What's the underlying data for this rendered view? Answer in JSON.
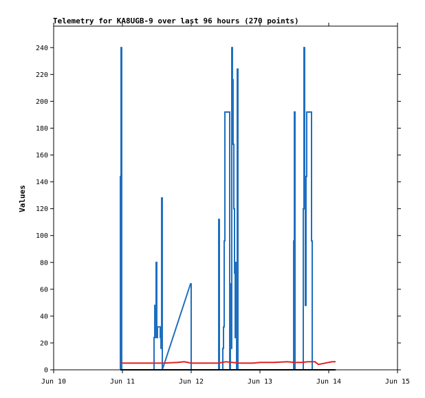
{
  "chart_data": {
    "type": "line",
    "title": "Telemetry for KA8UGB-9 over last 96 hours (270 points)",
    "xlabel": "",
    "ylabel": "Values",
    "x_ticks": [
      "Jun 10",
      "Jun 11",
      "Jun 12",
      "Jun 13",
      "Jun 14",
      "Jun 15"
    ],
    "x_range": [
      10,
      15
    ],
    "ylim": [
      0,
      256
    ],
    "y_ticks": [
      0,
      20,
      40,
      60,
      80,
      100,
      120,
      140,
      160,
      180,
      200,
      220,
      240
    ],
    "grid": false,
    "legend": "none",
    "series": [
      {
        "color": "#1f6fbf",
        "style": "step",
        "points": [
          [
            10.97,
            0
          ],
          [
            10.97,
            144
          ],
          [
            10.98,
            144
          ],
          [
            10.98,
            240
          ],
          [
            10.99,
            240
          ],
          [
            10.99,
            0
          ],
          [
            11.46,
            0
          ],
          [
            11.46,
            24
          ],
          [
            11.47,
            24
          ],
          [
            11.47,
            48
          ],
          [
            11.48,
            48
          ],
          [
            11.48,
            24
          ],
          [
            11.49,
            24
          ],
          [
            11.49,
            80
          ],
          [
            11.5,
            80
          ],
          [
            11.5,
            24
          ],
          [
            11.51,
            24
          ],
          [
            11.51,
            32
          ],
          [
            11.55,
            32
          ],
          [
            11.55,
            24
          ],
          [
            11.56,
            24
          ],
          [
            11.56,
            16
          ],
          [
            11.57,
            16
          ],
          [
            11.57,
            128
          ],
          [
            11.58,
            128
          ],
          [
            11.58,
            0
          ],
          [
            11.99,
            64
          ],
          [
            12.0,
            64
          ],
          [
            12.0,
            0
          ],
          [
            12.4,
            0
          ],
          [
            12.4,
            112
          ],
          [
            12.41,
            112
          ],
          [
            12.41,
            0
          ],
          [
            12.46,
            0
          ],
          [
            12.46,
            16
          ],
          [
            12.47,
            16
          ],
          [
            12.47,
            32
          ],
          [
            12.48,
            32
          ],
          [
            12.48,
            96
          ],
          [
            12.49,
            96
          ],
          [
            12.49,
            192
          ],
          [
            12.56,
            192
          ],
          [
            12.56,
            0
          ],
          [
            12.57,
            0
          ],
          [
            12.57,
            64
          ],
          [
            12.58,
            64
          ],
          [
            12.58,
            16
          ],
          [
            12.59,
            16
          ],
          [
            12.59,
            240
          ],
          [
            12.6,
            240
          ],
          [
            12.6,
            216
          ],
          [
            12.61,
            216
          ],
          [
            12.61,
            168
          ],
          [
            12.62,
            168
          ],
          [
            12.62,
            120
          ],
          [
            12.63,
            120
          ],
          [
            12.63,
            72
          ],
          [
            12.64,
            72
          ],
          [
            12.64,
            24
          ],
          [
            12.65,
            24
          ],
          [
            12.65,
            80
          ],
          [
            12.66,
            80
          ],
          [
            12.66,
            0
          ],
          [
            12.67,
            0
          ],
          [
            12.67,
            224
          ],
          [
            12.68,
            224
          ],
          [
            12.68,
            0
          ],
          [
            13.49,
            0
          ],
          [
            13.49,
            96
          ],
          [
            13.5,
            96
          ],
          [
            13.5,
            192
          ],
          [
            13.51,
            192
          ],
          [
            13.51,
            0
          ],
          [
            13.63,
            0
          ],
          [
            13.63,
            120
          ],
          [
            13.64,
            120
          ],
          [
            13.64,
            240
          ],
          [
            13.65,
            240
          ],
          [
            13.65,
            128
          ],
          [
            13.66,
            128
          ],
          [
            13.66,
            48
          ],
          [
            13.67,
            48
          ],
          [
            13.67,
            144
          ],
          [
            13.68,
            144
          ],
          [
            13.68,
            192
          ],
          [
            13.75,
            192
          ],
          [
            13.75,
            96
          ],
          [
            13.76,
            96
          ],
          [
            13.76,
            0
          ]
        ]
      },
      {
        "color": "#e02020",
        "style": "line",
        "points": [
          [
            10.98,
            6
          ],
          [
            10.99,
            5
          ],
          [
            11.2,
            5
          ],
          [
            11.4,
            5
          ],
          [
            11.6,
            5
          ],
          [
            11.8,
            5.5
          ],
          [
            11.9,
            6
          ],
          [
            12.0,
            5
          ],
          [
            12.2,
            5
          ],
          [
            12.4,
            5
          ],
          [
            12.5,
            6
          ],
          [
            12.6,
            5.5
          ],
          [
            12.7,
            5
          ],
          [
            12.9,
            5
          ],
          [
            13.0,
            5.5
          ],
          [
            13.2,
            5.5
          ],
          [
            13.4,
            6
          ],
          [
            13.5,
            5.5
          ],
          [
            13.6,
            5.5
          ],
          [
            13.7,
            6
          ],
          [
            13.8,
            6
          ],
          [
            13.85,
            4
          ],
          [
            13.95,
            5
          ],
          [
            14.05,
            6
          ],
          [
            14.1,
            6
          ]
        ]
      },
      {
        "color": "#000000",
        "style": "line",
        "points": [
          [
            10.97,
            0
          ],
          [
            14.1,
            0
          ]
        ]
      }
    ]
  }
}
